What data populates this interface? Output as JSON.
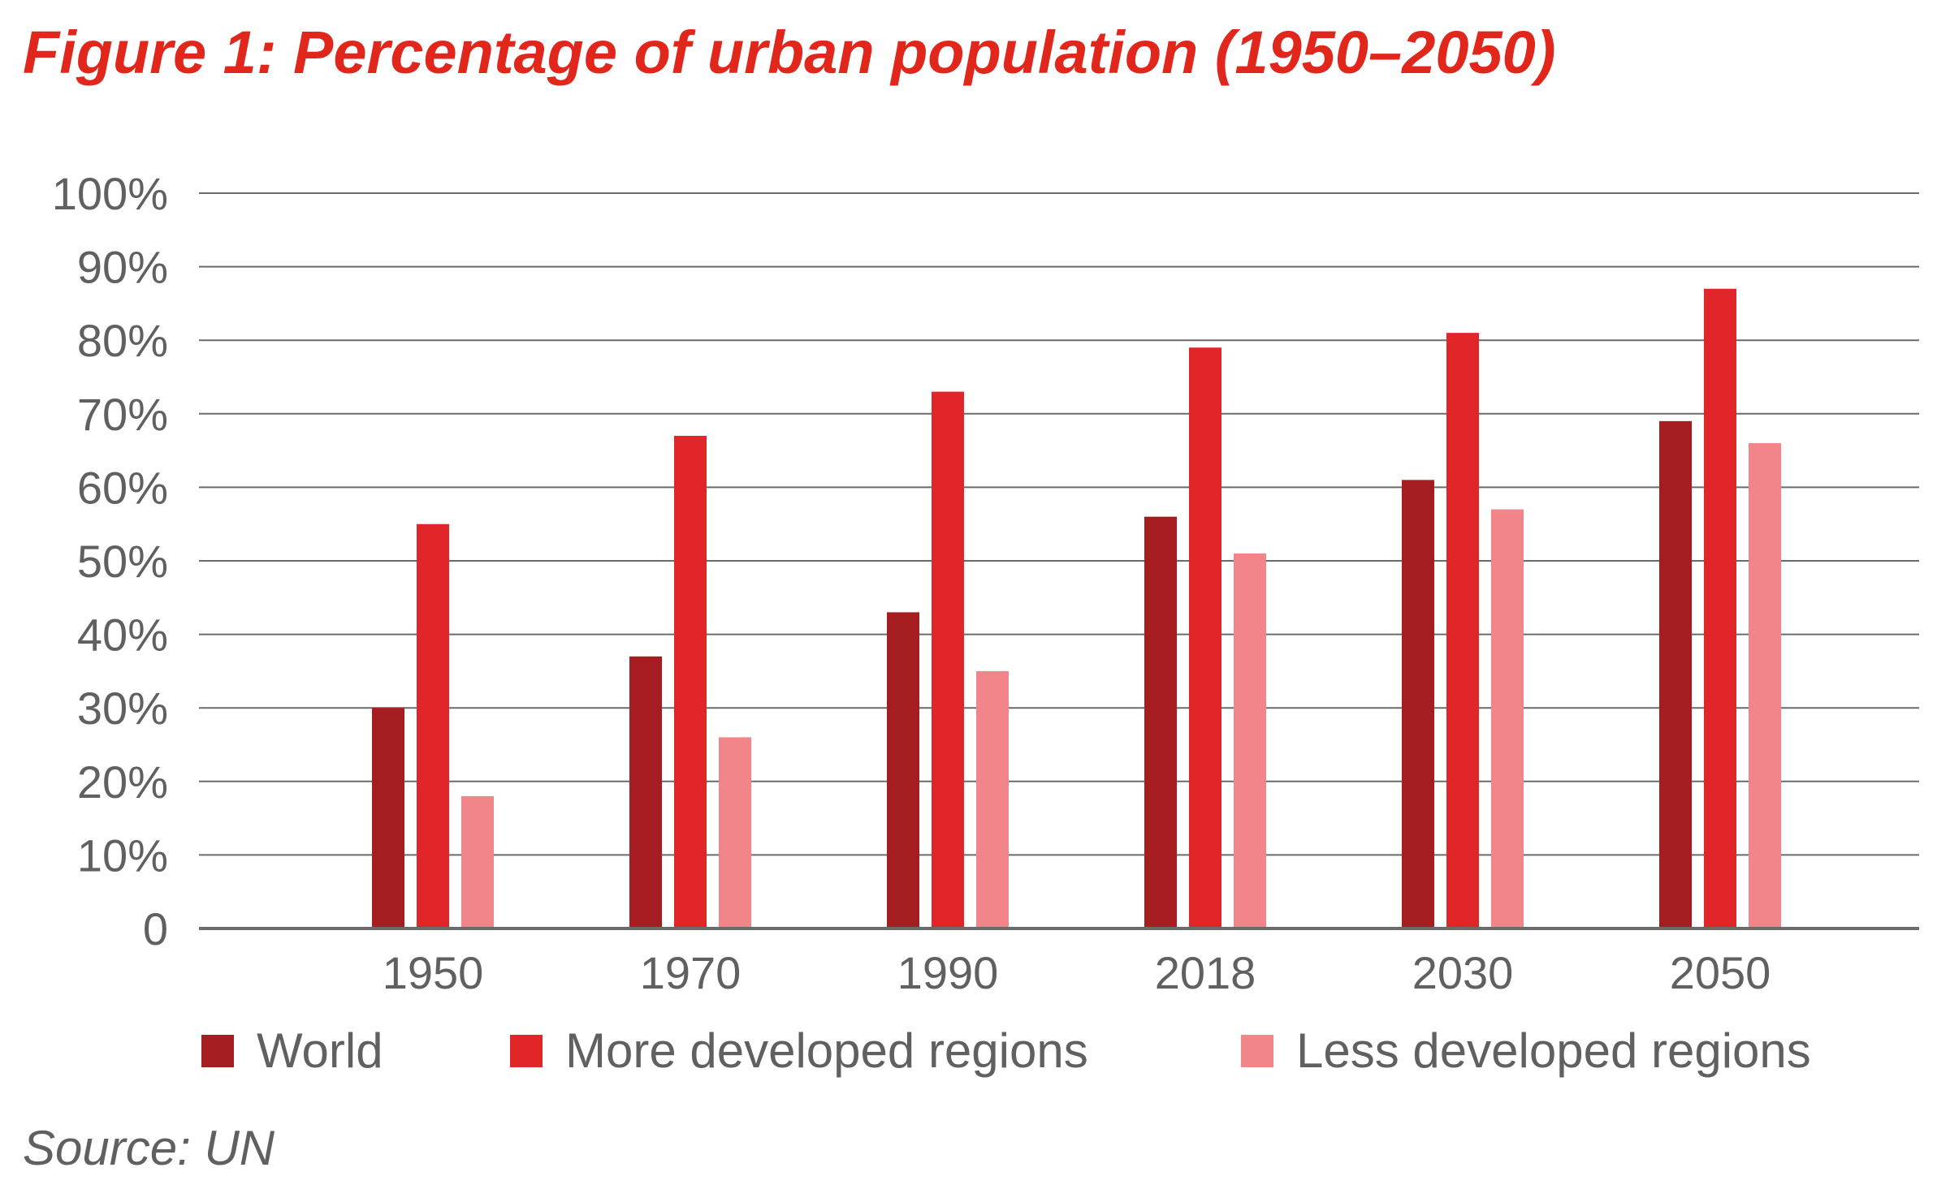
{
  "title": "Figure 1: Percentage of urban population (1950–2050)",
  "source": "Source: UN",
  "chart_data": {
    "type": "bar",
    "title": "Figure 1: Percentage of urban population (1950–2050)",
    "xlabel": "",
    "ylabel": "",
    "ylim": [
      0,
      100
    ],
    "yticks": [
      0,
      10,
      20,
      30,
      40,
      50,
      60,
      70,
      80,
      90,
      100
    ],
    "ytick_labels": [
      "0",
      "10%",
      "20%",
      "30%",
      "40%",
      "50%",
      "60%",
      "70%",
      "80%",
      "90%",
      "100%"
    ],
    "grid": true,
    "legend_position": "bottom",
    "categories": [
      "1950",
      "1970",
      "1990",
      "2018",
      "2030",
      "2050"
    ],
    "series": [
      {
        "name": "World",
        "color": "#a51c21",
        "values": [
          30,
          37,
          43,
          56,
          61,
          69
        ]
      },
      {
        "name": "More developed regions",
        "color": "#e1262a",
        "values": [
          55,
          67,
          73,
          79,
          81,
          87
        ]
      },
      {
        "name": "Less developed regions",
        "color": "#f28589",
        "values": [
          18,
          26,
          35,
          51,
          57,
          66
        ]
      }
    ]
  }
}
